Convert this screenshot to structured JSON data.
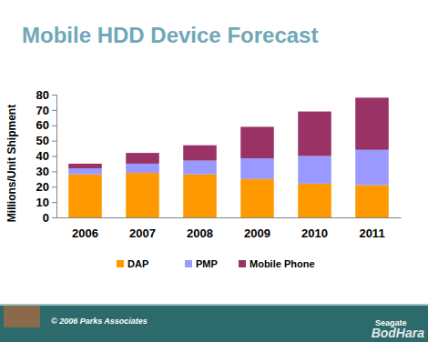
{
  "chart_data": {
    "type": "bar",
    "stacked": true,
    "title": "Mobile HDD Device Forecast",
    "y_label": "Millions/Unit Shipment",
    "categories": [
      "2006",
      "2007",
      "2008",
      "2009",
      "2010",
      "2011"
    ],
    "series": [
      {
        "name": "DAP",
        "color": "#ff9900",
        "values": [
          28,
          29,
          28,
          25,
          22,
          21
        ]
      },
      {
        "name": "PMP",
        "color": "#9999ff",
        "values": [
          4,
          6,
          9,
          13.5,
          18,
          23
        ]
      },
      {
        "name": "Mobile Phone",
        "color": "#993366",
        "values": [
          3,
          7,
          10,
          20.5,
          29,
          34
        ]
      }
    ],
    "ylim": [
      0,
      80
    ],
    "yticks": [
      0,
      10,
      20,
      30,
      40,
      50,
      60,
      70,
      80
    ],
    "grid": false,
    "legend": "bottom"
  },
  "footer": {
    "copyright": "© 2006 Parks Associates",
    "logo": "Seagate",
    "watermark": "BodHara"
  }
}
